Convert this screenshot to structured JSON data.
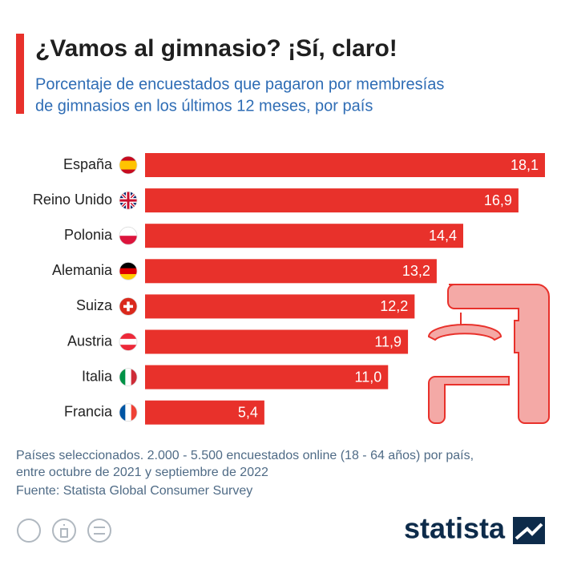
{
  "chart_data": {
    "type": "bar",
    "orientation": "horizontal",
    "title": "¿Vamos al gimnasio? ¡Sí, claro!",
    "subtitle": [
      "Porcentaje de encuestados que pagaron por membresías",
      "de gimnasios en los últimos 12 meses, por país"
    ],
    "categories": [
      "España",
      "Reino Unido",
      "Polonia",
      "Alemania",
      "Suiza",
      "Austria",
      "Italia",
      "Francia"
    ],
    "values": [
      18.1,
      16.9,
      14.4,
      13.2,
      12.2,
      11.9,
      11.0,
      5.4
    ],
    "value_labels": [
      "18,1",
      "16,9",
      "14,4",
      "13,2",
      "12,2",
      "11,9",
      "11,0",
      "5,4"
    ],
    "color": "#e8312b",
    "note": [
      "Países seleccionados. 2.000 - 5.500 encuestados online (18 - 64 años) por país,",
      "entre octubre de 2021 y septiembre de 2022"
    ],
    "source": "Fuente: Statista Global Consumer Survey",
    "logo": "statista"
  }
}
